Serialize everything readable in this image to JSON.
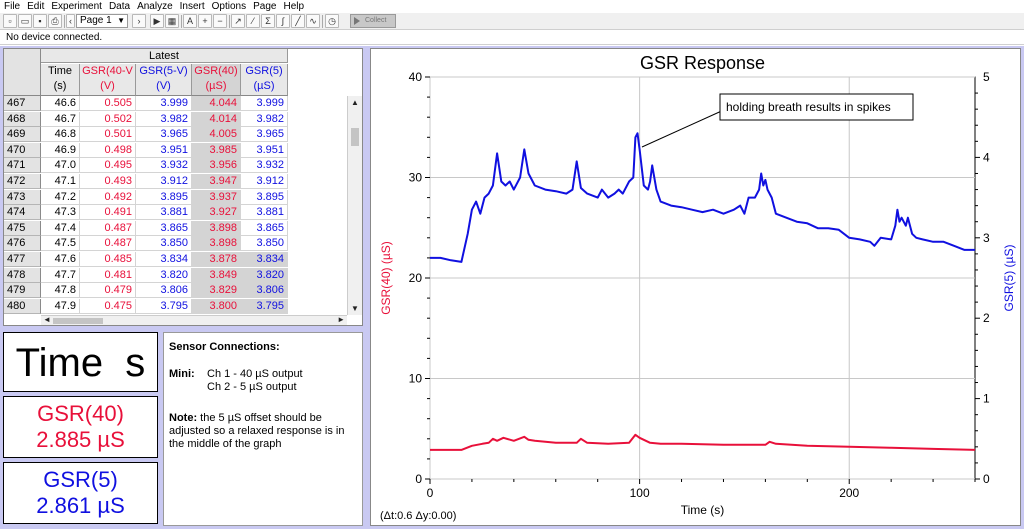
{
  "menu": [
    "File",
    "Edit",
    "Experiment",
    "Data",
    "Analyze",
    "Insert",
    "Options",
    "Page",
    "Help"
  ],
  "toolbar": {
    "page_select": "Page 1",
    "collect_label": "Collect"
  },
  "status": "No device connected.",
  "table": {
    "group_header": "Latest",
    "columns": [
      {
        "name": "Time",
        "unit": "(s)"
      },
      {
        "name": "GSR(40-V",
        "unit": "(V)"
      },
      {
        "name": "GSR(5-V)",
        "unit": "(V)"
      },
      {
        "name": "GSR(40)",
        "unit": "(µS)"
      },
      {
        "name": "GSR(5)",
        "unit": "(µS)"
      }
    ],
    "rows": [
      [
        "467",
        "46.6",
        "0.505",
        "3.999",
        "4.044",
        "3.999"
      ],
      [
        "468",
        "46.7",
        "0.502",
        "3.982",
        "4.014",
        "3.982"
      ],
      [
        "469",
        "46.8",
        "0.501",
        "3.965",
        "4.005",
        "3.965"
      ],
      [
        "470",
        "46.9",
        "0.498",
        "3.951",
        "3.985",
        "3.951"
      ],
      [
        "471",
        "47.0",
        "0.495",
        "3.932",
        "3.956",
        "3.932"
      ],
      [
        "472",
        "47.1",
        "0.493",
        "3.912",
        "3.947",
        "3.912"
      ],
      [
        "473",
        "47.2",
        "0.492",
        "3.895",
        "3.937",
        "3.895"
      ],
      [
        "474",
        "47.3",
        "0.491",
        "3.881",
        "3.927",
        "3.881"
      ],
      [
        "475",
        "47.4",
        "0.487",
        "3.865",
        "3.898",
        "3.865"
      ],
      [
        "476",
        "47.5",
        "0.487",
        "3.850",
        "3.898",
        "3.850"
      ],
      [
        "477",
        "47.6",
        "0.485",
        "3.834",
        "3.878",
        "3.834"
      ],
      [
        "478",
        "47.7",
        "0.481",
        "3.820",
        "3.849",
        "3.820"
      ],
      [
        "479",
        "47.8",
        "0.479",
        "3.806",
        "3.829",
        "3.806"
      ],
      [
        "480",
        "47.9",
        "0.475",
        "3.795",
        "3.800",
        "3.795"
      ]
    ],
    "highlighted_rows_from": 10
  },
  "meters": {
    "time": "Time  s",
    "gsr40_label": "GSR(40)",
    "gsr40_value": "2.885 µS",
    "gsr5_label": "GSR(5)",
    "gsr5_value": "2.861 µS"
  },
  "notes": {
    "heading": "Sensor Connections:",
    "mini_label": "Mini:",
    "ch1": "Ch 1 - 40 µS output",
    "ch2": "Ch 2 - 5 µS output",
    "note_label": "Note:",
    "note_text": "the 5 µS offset should be adjusted so a relaxed response is in the middle of the graph"
  },
  "colors": {
    "red": "#e8103a",
    "blue": "#1010e0",
    "workspace": "#c9c9f2"
  },
  "graph": {
    "delta": "(Δt:0.6 Δy:0.00)",
    "annotation": "holding breath results in spikes"
  },
  "chart_data": {
    "type": "line",
    "title": "GSR Response",
    "xlabel": "Time (s)",
    "ylabel_left": "GSR(40) (µS)",
    "ylabel_right": "GSR(5) (µS)",
    "xlim": [
      0,
      260
    ],
    "ylim_left": [
      0,
      40
    ],
    "ylim_right": [
      0,
      5
    ],
    "xticks": [
      0,
      100,
      200
    ],
    "yticks_left": [
      0,
      10,
      20,
      30,
      40
    ],
    "yticks_right": [
      0,
      1,
      2,
      3,
      4,
      5
    ],
    "grid": true,
    "series": [
      {
        "name": "GSR(5)",
        "axis": "right",
        "color": "#1010e0",
        "x": [
          0,
          5,
          10,
          15,
          18,
          20,
          22,
          24,
          26,
          28,
          30,
          32,
          34,
          36,
          38,
          40,
          43,
          45,
          47,
          50,
          55,
          60,
          65,
          68,
          70,
          72,
          75,
          80,
          82,
          85,
          88,
          90,
          92,
          95,
          97,
          98,
          99,
          100,
          102,
          104,
          105,
          106,
          108,
          110,
          115,
          120,
          125,
          130,
          135,
          140,
          145,
          148,
          150,
          152,
          155,
          157,
          158,
          159,
          160,
          161,
          163,
          165,
          170,
          175,
          180,
          185,
          190,
          195,
          200,
          205,
          210,
          212,
          215,
          220,
          222,
          223,
          224,
          225,
          227,
          228,
          230,
          232,
          235,
          240,
          245,
          250,
          255,
          260
        ],
        "values": [
          2.75,
          2.75,
          2.72,
          2.7,
          3.05,
          3.35,
          3.45,
          3.3,
          3.5,
          3.55,
          3.65,
          4.05,
          3.7,
          3.65,
          3.7,
          3.6,
          3.75,
          4.1,
          3.8,
          3.65,
          3.6,
          3.58,
          3.55,
          3.6,
          3.95,
          3.62,
          3.55,
          3.5,
          3.6,
          3.5,
          3.55,
          3.6,
          3.55,
          3.7,
          3.75,
          4.25,
          4.3,
          4.1,
          3.65,
          3.6,
          3.7,
          3.9,
          3.6,
          3.45,
          3.4,
          3.38,
          3.35,
          3.32,
          3.35,
          3.3,
          3.35,
          3.4,
          3.3,
          3.5,
          3.5,
          3.6,
          3.8,
          3.65,
          3.72,
          3.6,
          3.5,
          3.3,
          3.25,
          3.2,
          3.18,
          3.12,
          3.12,
          3.1,
          3.0,
          2.98,
          2.95,
          2.9,
          3.0,
          2.98,
          3.15,
          3.35,
          3.2,
          3.25,
          3.15,
          3.25,
          3.05,
          3.0,
          2.98,
          2.95,
          2.95,
          2.9,
          2.85,
          2.85
        ]
      },
      {
        "name": "GSR(40)",
        "axis": "left",
        "color": "#e8103a",
        "x": [
          0,
          10,
          15,
          20,
          25,
          28,
          30,
          32,
          35,
          40,
          45,
          47,
          50,
          60,
          70,
          72,
          75,
          85,
          95,
          98,
          100,
          103,
          105,
          110,
          120,
          140,
          160,
          162,
          165,
          180,
          200,
          220,
          240,
          260
        ],
        "values": [
          2.9,
          2.9,
          2.9,
          3.3,
          3.5,
          3.6,
          4.0,
          3.8,
          4.1,
          3.8,
          4.2,
          3.9,
          3.8,
          3.6,
          3.6,
          4.0,
          3.6,
          3.5,
          3.6,
          4.4,
          4.1,
          3.8,
          3.6,
          3.5,
          3.5,
          3.4,
          3.4,
          3.7,
          3.5,
          3.3,
          3.2,
          3.1,
          3.0,
          2.9
        ]
      }
    ]
  }
}
